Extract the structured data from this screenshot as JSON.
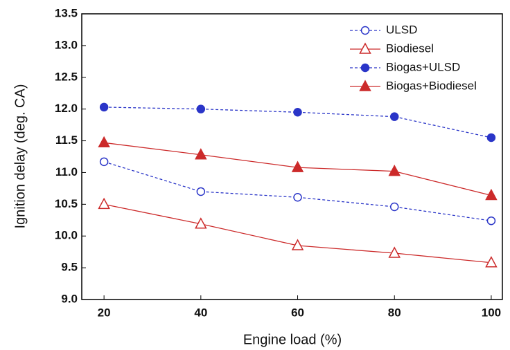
{
  "chart_data": {
    "type": "line",
    "x_label": "Engine load (%)",
    "y_label": "Ignition delay (deg. CA)",
    "x": [
      20,
      40,
      60,
      80,
      100
    ],
    "series": [
      {
        "name": "ULSD",
        "color": "#2a35c8",
        "marker": "circle",
        "filled": false,
        "dashed": true,
        "values": [
          11.17,
          10.7,
          10.61,
          10.46,
          10.24
        ]
      },
      {
        "name": "Biodiesel",
        "color": "#cc2a2a",
        "marker": "triangle",
        "filled": false,
        "dashed": false,
        "values": [
          10.5,
          10.19,
          9.85,
          9.73,
          9.58
        ]
      },
      {
        "name": "Biogas+ULSD",
        "color": "#2a35c8",
        "marker": "circle",
        "filled": true,
        "dashed": true,
        "values": [
          12.03,
          12.0,
          11.95,
          11.88,
          11.55
        ]
      },
      {
        "name": "Biogas+Biodiesel",
        "color": "#cc2a2a",
        "marker": "triangle",
        "filled": true,
        "dashed": false,
        "values": [
          11.47,
          11.28,
          11.08,
          11.02,
          10.64
        ]
      }
    ],
    "xlim": [
      15.4,
      102.3
    ],
    "xticks": [
      20,
      40,
      60,
      80,
      100
    ],
    "ylim": [
      9.0,
      13.5
    ],
    "yticks": [
      {
        "value": 9.0,
        "label": "9.0"
      },
      9.5,
      {
        "value": 10.0,
        "label": "10.0"
      },
      10.5,
      {
        "value": 11.0,
        "label": "11.0"
      },
      11.5,
      {
        "value": 12.0,
        "label": "12.0"
      },
      12.5,
      {
        "value": 13.0,
        "label": "13.0"
      },
      13.5
    ],
    "legend": "upper right"
  }
}
